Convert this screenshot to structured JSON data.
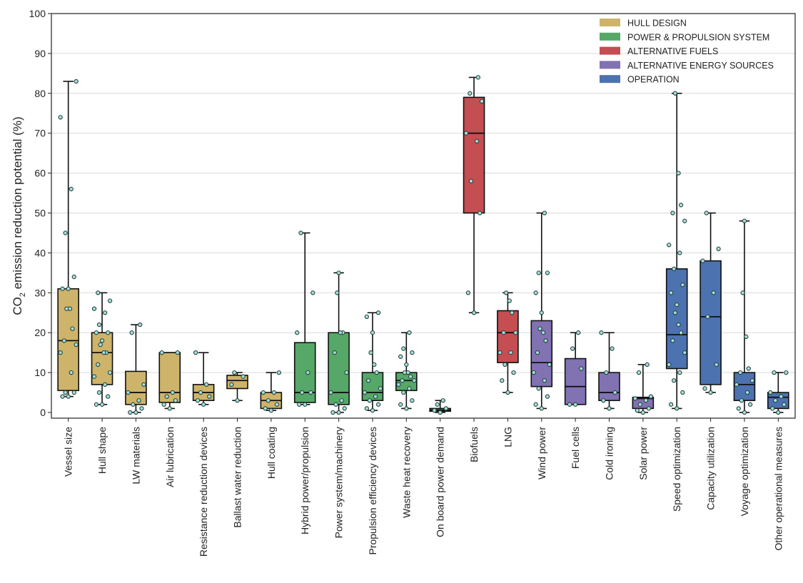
{
  "chart_data": {
    "type": "box",
    "title": "",
    "xlabel": "",
    "ylabel_main": "CO",
    "ylabel_sub": "2",
    "ylabel_rest": " emission reduction potential (%)",
    "ylim": [
      0,
      100
    ],
    "yticks": [
      0,
      10,
      20,
      30,
      40,
      50,
      60,
      70,
      80,
      90,
      100
    ],
    "grid": "horizontal",
    "legend_position": "top-right",
    "groups": [
      {
        "name": "HULL DESIGN",
        "color": "#cdb46a"
      },
      {
        "name": "POWER & PROPULSION SYSTEM",
        "color": "#55a868"
      },
      {
        "name": "ALTERNATIVE FUELS",
        "color": "#c44e52"
      },
      {
        "name": "ALTERNATIVE ENERGY SOURCES",
        "color": "#8172b2"
      },
      {
        "name": "OPERATION",
        "color": "#4c72b0"
      }
    ],
    "categories": [
      {
        "label": "Vessel size",
        "group": 0,
        "whislo": 4,
        "q1": 5.5,
        "med": 18,
        "q3": 31,
        "whishi": 83,
        "points": [
          4,
          4,
          5,
          5,
          10,
          15,
          17,
          18,
          21,
          26,
          26,
          31,
          31,
          34,
          45,
          56,
          74,
          83
        ]
      },
      {
        "label": "Hull shape",
        "group": 0,
        "whislo": 2,
        "q1": 7,
        "med": 15,
        "q3": 20,
        "whishi": 30,
        "points": [
          2,
          2,
          4,
          5,
          7,
          9,
          10,
          12,
          15,
          15,
          17,
          18,
          20,
          20,
          22,
          25,
          26,
          28,
          30
        ]
      },
      {
        "label": "LW materials",
        "group": 0,
        "whislo": 0,
        "q1": 2,
        "med": 5,
        "q3": 10.3,
        "whishi": 22,
        "points": [
          0,
          0,
          1,
          2,
          3,
          5,
          7,
          20,
          22
        ]
      },
      {
        "label": "Air lubrication",
        "group": 0,
        "whislo": 1,
        "q1": 2.5,
        "med": 5,
        "q3": 15,
        "whishi": 15,
        "points": [
          1,
          2,
          3,
          4,
          5,
          15,
          15
        ]
      },
      {
        "label": "Resistance reduction devices",
        "group": 0,
        "whislo": 2,
        "q1": 3,
        "med": 5,
        "q3": 7,
        "whishi": 15,
        "points": [
          2,
          3,
          4,
          5,
          7,
          15
        ]
      },
      {
        "label": "Ballast water reduction",
        "group": 0,
        "whislo": 3,
        "q1": 6,
        "med": 8,
        "q3": 9.3,
        "whishi": 10,
        "points": [
          3,
          7,
          9,
          10
        ]
      },
      {
        "label": "Hull coating",
        "group": 0,
        "whislo": 0.5,
        "q1": 1,
        "med": 3,
        "q3": 5,
        "whishi": 10,
        "points": [
          0.5,
          1,
          2,
          3,
          5,
          5,
          10
        ]
      },
      {
        "label": "Hybrid power/propulsion",
        "group": 1,
        "whislo": 2,
        "q1": 2.5,
        "med": 5,
        "q3": 17.5,
        "whishi": 45,
        "points": [
          2,
          2,
          5,
          5,
          10,
          20,
          30,
          45
        ]
      },
      {
        "label": "Power system/machinery",
        "group": 1,
        "whislo": 0,
        "q1": 2,
        "med": 5,
        "q3": 20,
        "whishi": 35,
        "points": [
          0,
          0,
          1,
          2,
          3,
          5,
          10,
          15,
          20,
          20,
          30,
          35
        ]
      },
      {
        "label": "Propulsion efficiency devices",
        "group": 1,
        "whislo": 0.5,
        "q1": 3,
        "med": 5,
        "q3": 10,
        "whishi": 25,
        "points": [
          0.5,
          1,
          2,
          3,
          4,
          5,
          6,
          8,
          10,
          12,
          15,
          20,
          24,
          25
        ]
      },
      {
        "label": "Waste heat recovery",
        "group": 1,
        "whislo": 1,
        "q1": 5.5,
        "med": 8,
        "q3": 10,
        "whishi": 20,
        "points": [
          1,
          2,
          3,
          5,
          6,
          7,
          8,
          8,
          9,
          10,
          10,
          12,
          14,
          15,
          16,
          20
        ]
      },
      {
        "label": "On board power demand",
        "group": 1,
        "whislo": 0,
        "q1": 0.3,
        "med": 0.6,
        "q3": 1,
        "whishi": 3,
        "points": [
          0,
          0.5,
          1,
          2,
          3
        ]
      },
      {
        "label": "Biofuels",
        "group": 2,
        "whislo": 25,
        "q1": 50,
        "med": 70,
        "q3": 79,
        "whishi": 84,
        "points": [
          25,
          30,
          50,
          58,
          68,
          70,
          78,
          80,
          84
        ]
      },
      {
        "label": "LNG",
        "group": 2,
        "whislo": 5,
        "q1": 12.5,
        "med": 20,
        "q3": 25.5,
        "whishi": 30,
        "points": [
          5,
          8,
          10,
          12,
          15,
          15,
          20,
          20,
          25,
          28,
          30
        ]
      },
      {
        "label": "Wind power",
        "group": 3,
        "whislo": 1,
        "q1": 6.5,
        "med": 12.5,
        "q3": 23,
        "whishi": 50,
        "points": [
          1,
          2,
          4,
          6,
          8,
          10,
          12,
          15,
          18,
          20,
          21,
          25,
          30,
          35,
          35,
          50
        ]
      },
      {
        "label": "Fuel cells",
        "group": 3,
        "whislo": 2,
        "q1": 2,
        "med": 6.5,
        "q3": 13.5,
        "whishi": 20,
        "points": [
          2,
          2,
          11,
          16,
          20
        ]
      },
      {
        "label": "Cold ironing",
        "group": 3,
        "whislo": 1,
        "q1": 3,
        "med": 5,
        "q3": 10,
        "whishi": 20,
        "points": [
          1,
          3,
          5,
          10,
          16,
          20
        ]
      },
      {
        "label": "Solar power",
        "group": 3,
        "whislo": 0,
        "q1": 1,
        "med": 3.5,
        "q3": 3.8,
        "whishi": 12,
        "points": [
          0,
          0.5,
          1,
          2,
          3,
          3.5,
          4,
          10,
          12
        ]
      },
      {
        "label": "Speed optimization",
        "group": 4,
        "whislo": 1,
        "q1": 11,
        "med": 19.5,
        "q3": 36,
        "whishi": 80,
        "points": [
          1,
          2,
          5,
          8,
          10,
          12,
          15,
          18,
          20,
          22,
          25,
          27,
          30,
          32,
          36,
          40,
          42,
          48,
          50,
          52,
          60,
          80
        ]
      },
      {
        "label": "Capacity utilization",
        "group": 4,
        "whislo": 5,
        "q1": 7,
        "med": 24,
        "q3": 38,
        "whishi": 50,
        "points": [
          5,
          6,
          12,
          24,
          30,
          38,
          41,
          50
        ]
      },
      {
        "label": "Voyage optimization",
        "group": 4,
        "whislo": 0,
        "q1": 3,
        "med": 7,
        "q3": 10,
        "whishi": 48,
        "points": [
          0,
          1,
          2,
          3,
          5,
          7,
          8,
          10,
          11,
          19,
          30,
          48
        ]
      },
      {
        "label": "Other operational measures",
        "group": 4,
        "whislo": 0,
        "q1": 1,
        "med": 3.8,
        "q3": 5,
        "whishi": 10,
        "points": [
          0,
          1,
          2,
          3,
          4,
          5,
          10,
          10
        ]
      }
    ]
  },
  "style": {
    "point_fill": "#9fe3dc",
    "point_stroke": "#2f3d3b",
    "line_color": "#111111",
    "grid_color": "#d9d9d9"
  }
}
